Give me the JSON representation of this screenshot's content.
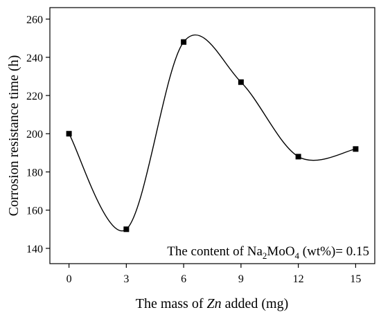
{
  "chart_data": {
    "type": "scatter",
    "title": "",
    "xlabel_parts": [
      "The mass of ",
      "Zn",
      " added (mg)"
    ],
    "ylabel": "Corrosion resistance time (h)",
    "x_ticks": [
      0,
      3,
      6,
      9,
      12,
      15
    ],
    "y_ticks": [
      140,
      160,
      180,
      200,
      220,
      240,
      260
    ],
    "xlim": [
      -1,
      16
    ],
    "ylim": [
      132,
      266
    ],
    "series": [
      {
        "x": [
          0,
          3,
          6,
          9,
          12,
          15
        ],
        "y": [
          200,
          150,
          248,
          227,
          188,
          192
        ],
        "smooth_line": true,
        "marker": "square",
        "color": "#000000"
      }
    ],
    "annotation": {
      "prefix": "The content of  Na",
      "sub1": "2",
      "mid": "MoO",
      "sub2": "4",
      "suffix": " (wt%)= 0.15",
      "placement": "bottom-right"
    },
    "grid": false
  }
}
